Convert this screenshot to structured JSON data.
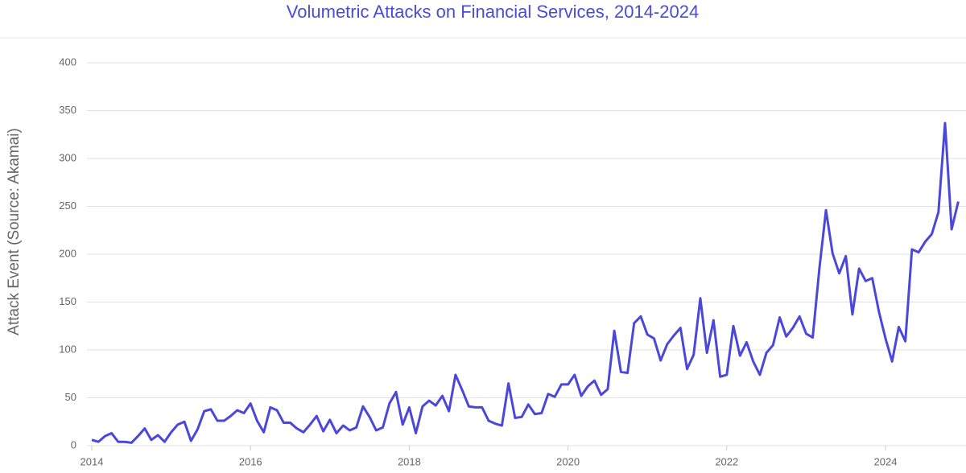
{
  "chart_data": {
    "type": "line",
    "title": "Volumetric Attacks on Financial Services, 2014-2024",
    "y_label": "Attack Event (Source: Akamai)",
    "color": "#4a47d9",
    "grid": true,
    "xlim": [
      2014,
      2025
    ],
    "xticks": [
      2014,
      2016,
      2018,
      2020,
      2022,
      2024
    ],
    "ylim": [
      0,
      400
    ],
    "yticks": [
      0,
      50,
      100,
      150,
      200,
      250,
      300,
      350,
      400
    ],
    "x": [
      2014,
      2014.083,
      2014.167,
      2014.25,
      2014.333,
      2014.417,
      2014.5,
      2014.583,
      2014.667,
      2014.75,
      2014.833,
      2014.917,
      2015,
      2015.083,
      2015.167,
      2015.25,
      2015.333,
      2015.417,
      2015.5,
      2015.583,
      2015.667,
      2015.75,
      2015.833,
      2015.917,
      2016,
      2016.083,
      2016.167,
      2016.25,
      2016.333,
      2016.417,
      2016.5,
      2016.583,
      2016.667,
      2016.75,
      2016.833,
      2016.917,
      2017,
      2017.083,
      2017.167,
      2017.25,
      2017.333,
      2017.417,
      2017.5,
      2017.583,
      2017.667,
      2017.75,
      2017.833,
      2017.917,
      2018,
      2018.083,
      2018.167,
      2018.25,
      2018.333,
      2018.417,
      2018.5,
      2018.583,
      2018.667,
      2018.75,
      2018.833,
      2018.917,
      2019,
      2019.083,
      2019.167,
      2019.25,
      2019.333,
      2019.417,
      2019.5,
      2019.583,
      2019.667,
      2019.75,
      2019.833,
      2019.917,
      2020,
      2020.083,
      2020.167,
      2020.25,
      2020.333,
      2020.417,
      2020.5,
      2020.583,
      2020.667,
      2020.75,
      2020.833,
      2020.917,
      2021,
      2021.083,
      2021.167,
      2021.25,
      2021.333,
      2021.417,
      2021.5,
      2021.583,
      2021.667,
      2021.75,
      2021.833,
      2021.917,
      2022,
      2022.083,
      2022.167,
      2022.25,
      2022.333,
      2022.417,
      2022.5,
      2022.583,
      2022.667,
      2022.75,
      2022.833,
      2022.917,
      2023,
      2023.083,
      2023.167,
      2023.25,
      2023.333,
      2023.417,
      2023.5,
      2023.583,
      2023.667,
      2023.75,
      2023.833,
      2023.917,
      2024,
      2024.083,
      2024.167,
      2024.25,
      2024.333,
      2024.417,
      2024.5,
      2024.583,
      2024.667,
      2024.75,
      2024.833,
      2024.917
    ],
    "values": [
      6,
      4,
      10,
      13,
      4,
      4,
      3,
      10,
      18,
      6,
      11,
      4,
      14,
      22,
      25,
      5,
      17,
      36,
      38,
      26,
      26,
      31,
      37,
      34,
      44,
      26,
      14,
      40,
      37,
      24,
      24,
      18,
      14,
      22,
      31,
      15,
      27,
      13,
      21,
      16,
      19,
      41,
      30,
      16,
      19,
      44,
      56,
      22,
      40,
      13,
      41,
      47,
      42,
      52,
      36,
      74,
      58,
      41,
      40,
      40,
      26,
      23,
      21,
      65,
      29,
      30,
      43,
      33,
      34,
      54,
      51,
      64,
      64,
      74,
      52,
      62,
      68,
      53,
      59,
      120,
      77,
      76,
      128,
      135,
      116,
      112,
      89,
      106,
      115,
      123,
      80,
      95,
      154,
      97,
      131,
      72,
      74,
      125,
      94,
      108,
      88,
      74,
      97,
      105,
      134,
      114,
      123,
      135,
      117,
      113,
      185,
      246,
      201,
      180,
      198,
      137,
      185,
      172,
      175,
      140,
      112,
      88,
      124,
      109,
      205,
      202,
      213,
      221,
      244,
      337,
      226,
      255
    ]
  }
}
